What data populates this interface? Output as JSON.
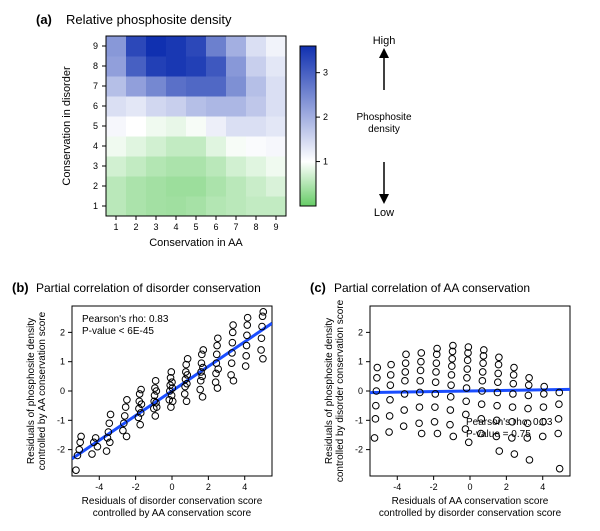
{
  "panelA": {
    "label": "(a)",
    "title": "Relative phosphosite density",
    "type": "heatmap",
    "xlabel": "Conservation in AA",
    "ylabel": "Conservation in disorder",
    "xticks": [
      1,
      2,
      3,
      4,
      5,
      6,
      7,
      8,
      9
    ],
    "yticks": [
      1,
      2,
      3,
      4,
      5,
      6,
      7,
      8,
      9
    ],
    "cells": [
      [
        0.55,
        0.45,
        0.4,
        0.38,
        0.42,
        0.5,
        0.55,
        0.6,
        0.6
      ],
      [
        0.55,
        0.45,
        0.4,
        0.35,
        0.35,
        0.45,
        0.55,
        0.65,
        0.75
      ],
      [
        0.7,
        0.6,
        0.5,
        0.45,
        0.45,
        0.55,
        0.7,
        0.8,
        0.9
      ],
      [
        0.9,
        0.8,
        0.7,
        0.6,
        0.6,
        0.8,
        0.95,
        1.05,
        1.1
      ],
      [
        1.1,
        1.0,
        0.9,
        0.85,
        0.95,
        1.2,
        1.4,
        1.4,
        1.3
      ],
      [
        1.4,
        1.3,
        1.5,
        1.6,
        1.8,
        1.9,
        1.9,
        1.7,
        1.4
      ],
      [
        1.8,
        2.2,
        2.5,
        2.8,
        2.9,
        2.9,
        2.4,
        1.8,
        1.4
      ],
      [
        2.2,
        3.0,
        3.4,
        3.5,
        3.4,
        3.1,
        2.3,
        1.6,
        1.3
      ],
      [
        2.3,
        3.3,
        3.6,
        3.5,
        3.3,
        2.6,
        2.0,
        1.4,
        1.15
      ]
    ],
    "colorbar": {
      "ticks": [
        1,
        2,
        3
      ],
      "min": 0.0,
      "max": 3.6,
      "cmap": {
        "lowColor": "#66cc66",
        "midColor": "#ffffff",
        "highColor": "#1030b0",
        "lowVal": 0.0,
        "midVal": 1.0,
        "highVal": 3.6
      },
      "arrowHighLabel": "High",
      "arrowLowLabel": "Low",
      "sideLabel": "Phosphosite density"
    },
    "tick_fontsize": 9,
    "axis_label_fontsize": 11,
    "title_fontsize": 13,
    "label_fontsize": 13
  },
  "panelB": {
    "label": "(b)",
    "title": "Partial correlation of disorder conservation",
    "type": "scatter",
    "xlabel": "Residuals of disorder conservation score\ncontrolled by AA conservation score",
    "ylabel": "Residuals of phosphosite density\ncontrolled by AA conservation score",
    "xlim": [
      -5.5,
      5.5
    ],
    "ylim": [
      -2.9,
      2.9
    ],
    "xticks": [
      -4,
      -2,
      0,
      2,
      4
    ],
    "yticks": [
      -2,
      -1,
      0,
      1,
      2
    ],
    "line": {
      "type": "fit",
      "slope": 0.42,
      "intercept": 0.0,
      "color": "#1a4dff",
      "width": 3
    },
    "stats": {
      "rho_label": "Pearson's rho: 0.83",
      "p_label": "P-value < 6E-45"
    },
    "marker": {
      "shape": "circle",
      "radius": 3.3,
      "stroke": "#000000",
      "fill": "none",
      "strokeWidth": 1
    },
    "points": [
      [
        -5.28,
        -2.7
      ],
      [
        -5.2,
        -2.2
      ],
      [
        -5.1,
        -2.0
      ],
      [
        -5.05,
        -1.75
      ],
      [
        -5.0,
        -1.55
      ],
      [
        -4.4,
        -2.15
      ],
      [
        -4.3,
        -1.75
      ],
      [
        -4.2,
        -1.6
      ],
      [
        -4.1,
        -1.9
      ],
      [
        -3.6,
        -2.05
      ],
      [
        -3.55,
        -1.6
      ],
      [
        -3.5,
        -1.4
      ],
      [
        -3.45,
        -1.1
      ],
      [
        -3.42,
        -1.75
      ],
      [
        -3.38,
        -0.8
      ],
      [
        -2.7,
        -1.35
      ],
      [
        -2.65,
        -1.1
      ],
      [
        -2.6,
        -0.85
      ],
      [
        -2.55,
        -0.55
      ],
      [
        -2.5,
        -1.55
      ],
      [
        -2.48,
        -0.3
      ],
      [
        -1.85,
        -0.9
      ],
      [
        -1.82,
        -0.6
      ],
      [
        -1.8,
        -0.35
      ],
      [
        -1.78,
        -0.1
      ],
      [
        -1.75,
        -1.15
      ],
      [
        -1.72,
        -0.75
      ],
      [
        -1.7,
        0.05
      ],
      [
        -1.68,
        -0.45
      ],
      [
        -1.0,
        -0.6
      ],
      [
        -0.98,
        -0.35
      ],
      [
        -0.96,
        -0.15
      ],
      [
        -0.94,
        0.1
      ],
      [
        -0.92,
        -0.85
      ],
      [
        -0.9,
        0.35
      ],
      [
        -0.88,
        -0.4
      ],
      [
        -0.86,
        0.0
      ],
      [
        -0.84,
        -0.55
      ],
      [
        -0.15,
        -0.3
      ],
      [
        -0.12,
        0.0
      ],
      [
        -0.1,
        0.2
      ],
      [
        -0.08,
        0.45
      ],
      [
        -0.06,
        -0.55
      ],
      [
        -0.04,
        0.65
      ],
      [
        -0.02,
        -0.15
      ],
      [
        0.0,
        0.3
      ],
      [
        0.02,
        0.1
      ],
      [
        0.04,
        -0.35
      ],
      [
        0.7,
        -0.1
      ],
      [
        0.72,
        0.15
      ],
      [
        0.74,
        0.4
      ],
      [
        0.76,
        0.65
      ],
      [
        0.78,
        0.9
      ],
      [
        0.8,
        -0.35
      ],
      [
        0.82,
        0.25
      ],
      [
        0.84,
        0.55
      ],
      [
        0.86,
        1.1
      ],
      [
        1.55,
        0.05
      ],
      [
        1.58,
        0.35
      ],
      [
        1.6,
        0.65
      ],
      [
        1.62,
        0.95
      ],
      [
        1.64,
        1.25
      ],
      [
        1.66,
        0.5
      ],
      [
        1.68,
        -0.2
      ],
      [
        1.7,
        0.8
      ],
      [
        1.72,
        1.4
      ],
      [
        2.4,
        0.3
      ],
      [
        2.42,
        0.6
      ],
      [
        2.44,
        0.95
      ],
      [
        2.46,
        1.25
      ],
      [
        2.48,
        1.55
      ],
      [
        2.5,
        0.1
      ],
      [
        2.52,
        1.8
      ],
      [
        2.54,
        0.75
      ],
      [
        3.25,
        0.55
      ],
      [
        3.28,
        0.95
      ],
      [
        3.3,
        1.3
      ],
      [
        3.32,
        1.65
      ],
      [
        3.34,
        2.0
      ],
      [
        3.36,
        2.25
      ],
      [
        3.38,
        0.35
      ],
      [
        4.05,
        0.85
      ],
      [
        4.08,
        1.2
      ],
      [
        4.1,
        1.55
      ],
      [
        4.12,
        1.9
      ],
      [
        4.14,
        2.25
      ],
      [
        4.16,
        2.5
      ],
      [
        4.9,
        1.4
      ],
      [
        4.92,
        1.8
      ],
      [
        4.95,
        2.2
      ],
      [
        4.98,
        2.55
      ],
      [
        5.0,
        1.1
      ],
      [
        5.02,
        2.7
      ]
    ],
    "tick_fontsize": 9,
    "axis_label_fontsize": 10
  },
  "panelC": {
    "label": "(c)",
    "title": "Partial correlation of AA conservation",
    "type": "scatter",
    "xlabel": "Residuals of AA conservation score\ncontrolled by disorder conservation score",
    "ylabel": "Residuals of phosphosite density\ncontrolled by disorder conservation score",
    "xlim": [
      -5.5,
      5.5
    ],
    "ylim": [
      -2.9,
      2.9
    ],
    "xticks": [
      -4,
      -2,
      0,
      2,
      4
    ],
    "yticks": [
      -2,
      -1,
      0,
      1,
      2
    ],
    "line": {
      "type": "fit",
      "slope": 0.01,
      "intercept": 0.0,
      "color": "#1a4dff",
      "width": 3
    },
    "stats": {
      "rho_label": "Pearson's rho: 0.03",
      "p_label": "P-value = 0.75"
    },
    "marker": {
      "shape": "circle",
      "radius": 3.3,
      "stroke": "#000000",
      "fill": "none",
      "strokeWidth": 1
    },
    "points": [
      [
        -5.25,
        -1.6
      ],
      [
        -5.2,
        -0.95
      ],
      [
        -5.18,
        -0.5
      ],
      [
        -5.15,
        0.0
      ],
      [
        -5.12,
        0.45
      ],
      [
        -5.1,
        0.8
      ],
      [
        -4.45,
        -1.4
      ],
      [
        -4.42,
        -0.85
      ],
      [
        -4.4,
        -0.3
      ],
      [
        -4.38,
        0.2
      ],
      [
        -4.36,
        0.55
      ],
      [
        -4.34,
        0.9
      ],
      [
        -3.65,
        -1.2
      ],
      [
        -3.62,
        -0.65
      ],
      [
        -3.6,
        -0.1
      ],
      [
        -3.58,
        0.35
      ],
      [
        -3.56,
        0.65
      ],
      [
        -3.54,
        0.95
      ],
      [
        -3.52,
        1.25
      ],
      [
        -2.8,
        -1.1
      ],
      [
        -2.78,
        -0.55
      ],
      [
        -2.76,
        -0.05
      ],
      [
        -2.74,
        0.35
      ],
      [
        -2.72,
        0.7
      ],
      [
        -2.7,
        1.0
      ],
      [
        -2.68,
        1.3
      ],
      [
        -2.66,
        -1.45
      ],
      [
        -1.95,
        -1.05
      ],
      [
        -1.93,
        -0.55
      ],
      [
        -1.91,
        -0.1
      ],
      [
        -1.89,
        0.3
      ],
      [
        -1.87,
        0.65
      ],
      [
        -1.85,
        0.95
      ],
      [
        -1.83,
        1.25
      ],
      [
        -1.81,
        1.45
      ],
      [
        -1.79,
        -1.45
      ],
      [
        -1.1,
        -1.15
      ],
      [
        -1.08,
        -0.65
      ],
      [
        -1.06,
        -0.2
      ],
      [
        -1.04,
        0.2
      ],
      [
        -1.02,
        0.55
      ],
      [
        -1.0,
        0.85
      ],
      [
        -0.98,
        1.1
      ],
      [
        -0.96,
        1.35
      ],
      [
        -0.94,
        1.55
      ],
      [
        -0.92,
        -1.55
      ],
      [
        -0.25,
        -1.3
      ],
      [
        -0.23,
        -0.8
      ],
      [
        -0.21,
        -0.35
      ],
      [
        -0.19,
        0.1
      ],
      [
        -0.17,
        0.45
      ],
      [
        -0.15,
        0.75
      ],
      [
        -0.13,
        1.05
      ],
      [
        -0.11,
        1.3
      ],
      [
        -0.09,
        1.5
      ],
      [
        -0.07,
        -1.75
      ],
      [
        0.6,
        -1.45
      ],
      [
        0.62,
        -0.95
      ],
      [
        0.64,
        -0.45
      ],
      [
        0.66,
        0.0
      ],
      [
        0.68,
        0.35
      ],
      [
        0.7,
        0.65
      ],
      [
        0.72,
        0.95
      ],
      [
        0.74,
        1.2
      ],
      [
        0.76,
        1.4
      ],
      [
        1.45,
        -1.55
      ],
      [
        1.47,
        -1.0
      ],
      [
        1.49,
        -0.5
      ],
      [
        1.51,
        -0.05
      ],
      [
        1.53,
        0.3
      ],
      [
        1.55,
        0.6
      ],
      [
        1.57,
        0.9
      ],
      [
        1.59,
        1.15
      ],
      [
        1.61,
        -2.05
      ],
      [
        2.3,
        -1.6
      ],
      [
        2.32,
        -1.05
      ],
      [
        2.34,
        -0.55
      ],
      [
        2.36,
        -0.1
      ],
      [
        2.38,
        0.25
      ],
      [
        2.4,
        0.55
      ],
      [
        2.42,
        0.8
      ],
      [
        2.44,
        -2.15
      ],
      [
        3.15,
        -1.6
      ],
      [
        3.17,
        -1.1
      ],
      [
        3.19,
        -0.6
      ],
      [
        3.21,
        -0.15
      ],
      [
        3.23,
        0.2
      ],
      [
        3.25,
        0.45
      ],
      [
        3.27,
        -2.35
      ],
      [
        4.0,
        -1.55
      ],
      [
        4.02,
        -1.05
      ],
      [
        4.04,
        -0.55
      ],
      [
        4.06,
        -0.1
      ],
      [
        4.08,
        0.15
      ],
      [
        4.85,
        -1.45
      ],
      [
        4.87,
        -0.95
      ],
      [
        4.89,
        -0.45
      ],
      [
        4.91,
        -0.05
      ],
      [
        4.93,
        -2.65
      ]
    ],
    "tick_fontsize": 9,
    "axis_label_fontsize": 10
  }
}
